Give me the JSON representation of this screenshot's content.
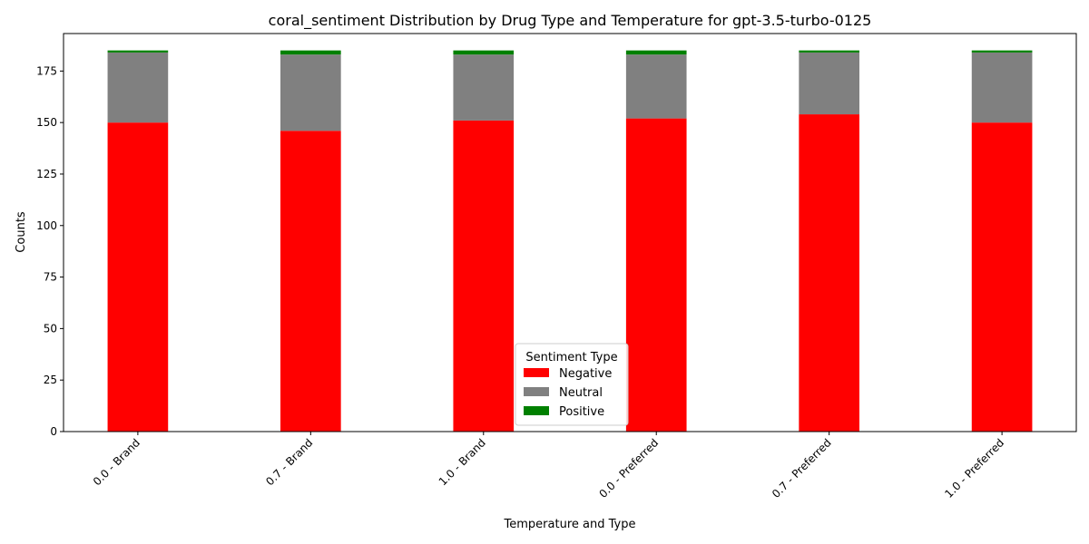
{
  "chart_data": {
    "type": "bar",
    "stacked": true,
    "title": "coral_sentiment Distribution by Drug Type and Temperature for gpt-3.5-turbo-0125",
    "xlabel": "Temperature and Type",
    "ylabel": "Counts",
    "categories": [
      "0.0 - Brand",
      "0.7 - Brand",
      "1.0 - Brand",
      "0.0 - Preferred",
      "0.7 - Preferred",
      "1.0 - Preferred"
    ],
    "series": [
      {
        "name": "Negative",
        "color": "#ff0000",
        "values": [
          150,
          146,
          151,
          152,
          154,
          150
        ]
      },
      {
        "name": "Neutral",
        "color": "#808080",
        "values": [
          34,
          37,
          32,
          31,
          30,
          34
        ]
      },
      {
        "name": "Positive",
        "color": "#008000",
        "values": [
          1,
          2,
          2,
          2,
          1,
          1
        ]
      }
    ],
    "ylim": [
      0,
      193.2
    ],
    "yticks": [
      0,
      25,
      50,
      75,
      100,
      125,
      150,
      175
    ],
    "grid": false,
    "legend": {
      "title": "Sentiment Type",
      "position": "bottom-center"
    }
  }
}
